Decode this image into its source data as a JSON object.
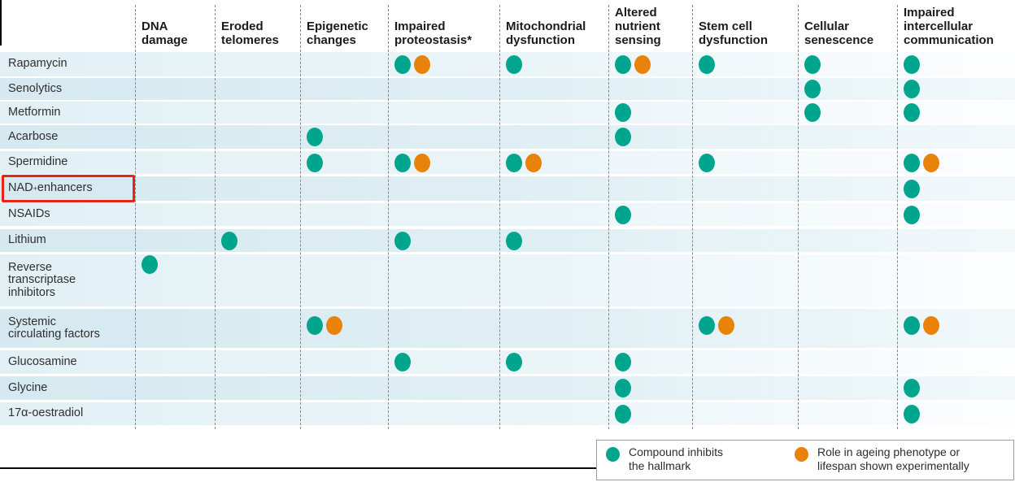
{
  "figure": {
    "description_visible_title": "",
    "colors": {
      "teal": "#00a58e",
      "orange": "#e98208",
      "highlight_red": "#ea2318"
    }
  },
  "chart_data": {
    "type": "table",
    "columns": [
      {
        "id": "dna-damage",
        "label": "DNA\ndamage"
      },
      {
        "id": "eroded-telomeres",
        "label": "Eroded\ntelomeres"
      },
      {
        "id": "epigenetic-changes",
        "label": "Epigenetic\nchanges"
      },
      {
        "id": "impaired-proteostasis",
        "label": "Impaired\nproteostasis*"
      },
      {
        "id": "mitochondrial-dysfunction",
        "label": "Mitochondrial\ndysfunction"
      },
      {
        "id": "altered-nutrient-sensing",
        "label": "Altered\nnutrient\nsensing"
      },
      {
        "id": "stem-cell-dysfunction",
        "label": "Stem cell\ndysfunction"
      },
      {
        "id": "cellular-senescence",
        "label": "Cellular\nsenescence"
      },
      {
        "id": "impaired-intercellular-communication",
        "label": "Impaired\nintercellular\ncommunication"
      }
    ],
    "rows": [
      {
        "label": "Rapamycin",
        "marks": [
          {
            "col": 3,
            "experimental": true
          },
          {
            "col": 4
          },
          {
            "col": 5,
            "experimental": true
          },
          {
            "col": 6
          },
          {
            "col": 7
          },
          {
            "col": 8
          }
        ]
      },
      {
        "label": "Senolytics",
        "marks": [
          {
            "col": 7
          },
          {
            "col": 8
          }
        ]
      },
      {
        "label": "Metformin",
        "marks": [
          {
            "col": 5
          },
          {
            "col": 7
          },
          {
            "col": 8
          }
        ]
      },
      {
        "label": "Acarbose",
        "marks": [
          {
            "col": 2
          },
          {
            "col": 5
          }
        ]
      },
      {
        "label": "Spermidine",
        "marks": [
          {
            "col": 2
          },
          {
            "col": 3,
            "experimental": true
          },
          {
            "col": 4,
            "experimental": true
          },
          {
            "col": 6
          },
          {
            "col": 8,
            "experimental": true
          }
        ]
      },
      {
        "label": "NAD+ enhancers",
        "highlighted": true,
        "marks": [
          {
            "col": 8
          }
        ]
      },
      {
        "label": "NSAIDs",
        "marks": [
          {
            "col": 5
          },
          {
            "col": 8
          }
        ]
      },
      {
        "label": "Lithium",
        "marks": [
          {
            "col": 1
          },
          {
            "col": 3
          },
          {
            "col": 4
          }
        ]
      },
      {
        "label": "Reverse\ntranscriptase\ninhibitors",
        "marks": [
          {
            "col": 0
          }
        ]
      },
      {
        "label": "Systemic\ncirculating factors",
        "marks": [
          {
            "col": 2,
            "experimental": true
          },
          {
            "col": 6,
            "experimental": true
          },
          {
            "col": 8,
            "experimental": true
          }
        ]
      },
      {
        "label": "Glucosamine",
        "marks": [
          {
            "col": 3
          },
          {
            "col": 4
          },
          {
            "col": 5
          }
        ]
      },
      {
        "label": "Glycine",
        "marks": [
          {
            "col": 5
          },
          {
            "col": 8
          }
        ]
      },
      {
        "label": "17α-oestradiol",
        "marks": [
          {
            "col": 5
          },
          {
            "col": 8
          }
        ]
      }
    ],
    "legend": {
      "items": [
        {
          "color": "#00a58e",
          "label": "Compound inhibits\nthe hallmark"
        },
        {
          "color": "#e98208",
          "label": "Role in ageing phenotype or\nlifespan shown experimentally"
        }
      ],
      "position": "bottom-right"
    },
    "mark_semantics": {
      "teal": "Compound inhibits the hallmark",
      "orange": "Role in ageing phenotype or lifespan shown experimentally"
    }
  }
}
